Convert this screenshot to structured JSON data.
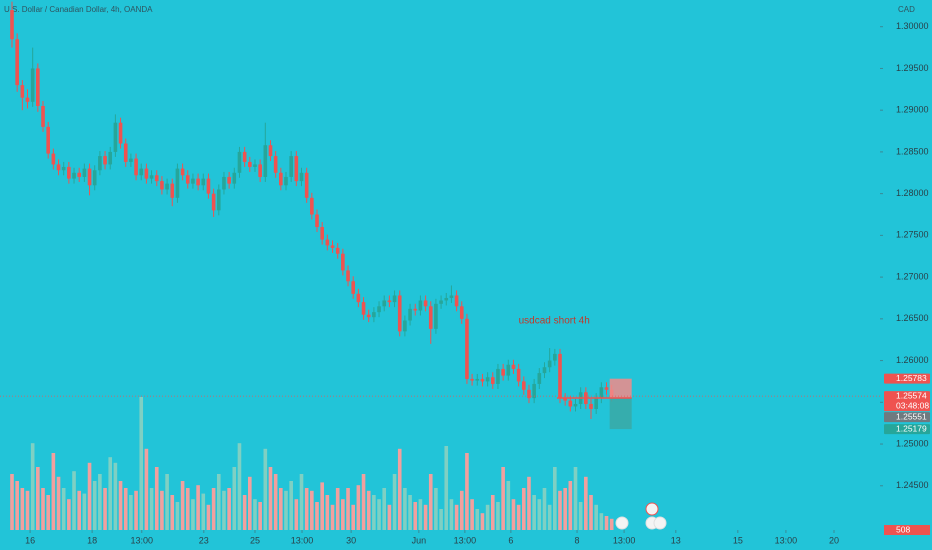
{
  "chart_data": {
    "type": "candlestick",
    "title": "U.S. Dollar / Canadian Dollar, 4h, OANDA",
    "currency": "CAD",
    "annotation": "usdcad short 4h",
    "colors": {
      "up": "#26a69a",
      "down": "#ef5350",
      "up_volume": "#7fd0c3",
      "down_volume": "#f2a09e"
    },
    "xlim": [
      -2.32,
      167.9
    ],
    "ylim": [
      1.2397,
      1.3032
    ],
    "volume_lim": [
      0,
      100
    ],
    "grid": false,
    "yticks": [
      {
        "value": 1.245,
        "label": "1.24500"
      },
      {
        "value": 1.25,
        "label": "1.25000"
      },
      {
        "value": 1.255,
        "label": "1.25500"
      },
      {
        "value": 1.26,
        "label": "1.26000"
      },
      {
        "value": 1.265,
        "label": "1.26500"
      },
      {
        "value": 1.27,
        "label": "1.27000"
      },
      {
        "value": 1.275,
        "label": "1.27500"
      },
      {
        "value": 1.28,
        "label": "1.28000"
      },
      {
        "value": 1.285,
        "label": "1.28500"
      },
      {
        "value": 1.29,
        "label": "1.29000"
      },
      {
        "value": 1.295,
        "label": "1.29500"
      },
      {
        "value": 1.3,
        "label": "1.30000"
      }
    ],
    "xticks": [
      {
        "value": 3.5,
        "label": "16"
      },
      {
        "value": 15.5,
        "label": "18"
      },
      {
        "value": 25.1,
        "label": "13:00"
      },
      {
        "value": 37.1,
        "label": "23"
      },
      {
        "value": 47,
        "label": "25"
      },
      {
        "value": 56.1,
        "label": "13:00"
      },
      {
        "value": 65.6,
        "label": "30"
      },
      {
        "value": 78.7,
        "label": "Jun"
      },
      {
        "value": 87.6,
        "label": "13:00"
      },
      {
        "value": 96.5,
        "label": "6"
      },
      {
        "value": 109.3,
        "label": "8"
      },
      {
        "value": 118.4,
        "label": "13:00"
      },
      {
        "value": 128.4,
        "label": "13"
      },
      {
        "value": 140.4,
        "label": "15"
      },
      {
        "value": 149.7,
        "label": "13:00"
      },
      {
        "value": 159,
        "label": "20"
      }
    ],
    "open": [
      1.302,
      1.2985,
      1.293,
      1.2915,
      1.291,
      1.295,
      1.2905,
      1.288,
      1.2848,
      1.2835,
      1.2828,
      1.2832,
      1.2818,
      1.2825,
      1.282,
      1.283,
      1.281,
      1.2828,
      1.2845,
      1.2835,
      1.285,
      1.2885,
      1.286,
      1.2838,
      1.2842,
      1.2822,
      1.283,
      1.2818,
      1.2822,
      1.2815,
      1.2805,
      1.2812,
      1.2795,
      1.283,
      1.2822,
      1.2812,
      1.2818,
      1.281,
      1.2818,
      1.28,
      1.278,
      1.2805,
      1.282,
      1.2812,
      1.2825,
      1.285,
      1.2838,
      1.2832,
      1.2835,
      1.282,
      1.2858,
      1.2845,
      1.2825,
      1.281,
      1.282,
      1.2845,
      1.2815,
      1.2825,
      1.2795,
      1.2775,
      1.276,
      1.2745,
      1.2738,
      1.2735,
      1.2728,
      1.2708,
      1.2695,
      1.268,
      1.267,
      1.2655,
      1.2652,
      1.2658,
      1.2665,
      1.2672,
      1.267,
      1.2678,
      1.2635,
      1.2648,
      1.2662,
      1.266,
      1.2672,
      1.2665,
      1.2638,
      1.2668,
      1.2672,
      1.2675,
      1.2678,
      1.2665,
      1.265,
      1.2578,
      1.2576,
      1.2578,
      1.2575,
      1.258,
      1.2572,
      1.259,
      1.2582,
      1.2595,
      1.259,
      1.2575,
      1.2565,
      1.2555,
      1.2572,
      1.2585,
      1.2592,
      1.26,
      1.2608,
      1.2555,
      1.2552,
      1.2545,
      1.2548,
      1.2562,
      1.2548,
      1.2542,
      1.2555,
      1.2568,
      1.2565
    ],
    "high": [
      1.303,
      1.2992,
      1.2936,
      1.2925,
      1.2975,
      1.2956,
      1.2911,
      1.2886,
      1.2854,
      1.2841,
      1.2838,
      1.2838,
      1.2831,
      1.2831,
      1.2836,
      1.2836,
      1.2834,
      1.2851,
      1.2851,
      1.2856,
      1.2895,
      1.2891,
      1.2866,
      1.2848,
      1.2848,
      1.2836,
      1.2836,
      1.2828,
      1.2828,
      1.2821,
      1.2818,
      1.2818,
      1.2836,
      1.2836,
      1.2828,
      1.2824,
      1.2824,
      1.2824,
      1.2824,
      1.2806,
      1.2811,
      1.2826,
      1.2826,
      1.2831,
      1.2856,
      1.2856,
      1.2844,
      1.2841,
      1.2841,
      1.2885,
      1.2864,
      1.2851,
      1.2831,
      1.2826,
      1.2851,
      1.2851,
      1.2831,
      1.2831,
      1.2801,
      1.2781,
      1.2766,
      1.2751,
      1.2744,
      1.2741,
      1.2734,
      1.2714,
      1.2701,
      1.2686,
      1.2676,
      1.2661,
      1.2664,
      1.2671,
      1.2678,
      1.2678,
      1.2684,
      1.2684,
      1.2654,
      1.2668,
      1.2668,
      1.2678,
      1.2678,
      1.2671,
      1.2674,
      1.2678,
      1.2681,
      1.269,
      1.2684,
      1.2671,
      1.2656,
      1.2584,
      1.2584,
      1.2584,
      1.2586,
      1.2586,
      1.2596,
      1.2596,
      1.2601,
      1.2601,
      1.2596,
      1.2581,
      1.2571,
      1.2578,
      1.2591,
      1.2598,
      1.2615,
      1.2614,
      1.2614,
      1.2561,
      1.2558,
      1.2554,
      1.2568,
      1.2568,
      1.2554,
      1.2561,
      1.2574,
      1.2574,
      1.2571
    ],
    "low": [
      1.2975,
      1.2922,
      1.29,
      1.2902,
      1.2904,
      1.2898,
      1.2874,
      1.2842,
      1.2829,
      1.2822,
      1.2822,
      1.2812,
      1.2812,
      1.2814,
      1.2814,
      1.2798,
      1.2804,
      1.2822,
      1.2829,
      1.2829,
      1.2844,
      1.2854,
      1.2832,
      1.2832,
      1.2816,
      1.2816,
      1.2812,
      1.2812,
      1.2809,
      1.2799,
      1.2799,
      1.2785,
      1.2789,
      1.2816,
      1.2806,
      1.2806,
      1.2804,
      1.2804,
      1.2794,
      1.2772,
      1.2774,
      1.2799,
      1.2806,
      1.2806,
      1.2819,
      1.2832,
      1.2826,
      1.2826,
      1.2814,
      1.2814,
      1.2839,
      1.2819,
      1.2804,
      1.2804,
      1.2814,
      1.2809,
      1.2809,
      1.2789,
      1.2769,
      1.2754,
      1.2739,
      1.2732,
      1.2729,
      1.2722,
      1.2702,
      1.2689,
      1.2674,
      1.2664,
      1.2649,
      1.2646,
      1.2646,
      1.2652,
      1.2659,
      1.2664,
      1.2664,
      1.2629,
      1.2629,
      1.2642,
      1.2654,
      1.2654,
      1.2659,
      1.262,
      1.2632,
      1.2662,
      1.2666,
      1.2669,
      1.2659,
      1.2644,
      1.2572,
      1.257,
      1.257,
      1.2569,
      1.2569,
      1.2566,
      1.2566,
      1.2576,
      1.2576,
      1.2584,
      1.2569,
      1.2559,
      1.2549,
      1.2549,
      1.2566,
      1.2579,
      1.2586,
      1.2594,
      1.2549,
      1.2546,
      1.2539,
      1.2539,
      1.2542,
      1.2542,
      1.253,
      1.2536,
      1.2549,
      1.2559,
      1.2551
    ],
    "close": [
      1.2985,
      1.293,
      1.2915,
      1.291,
      1.295,
      1.2905,
      1.288,
      1.2848,
      1.2835,
      1.2828,
      1.2832,
      1.2818,
      1.2825,
      1.282,
      1.283,
      1.281,
      1.2828,
      1.2845,
      1.2835,
      1.285,
      1.2885,
      1.286,
      1.2838,
      1.2842,
      1.2822,
      1.283,
      1.2818,
      1.2822,
      1.2815,
      1.2805,
      1.2812,
      1.2795,
      1.283,
      1.2822,
      1.2812,
      1.2818,
      1.281,
      1.2818,
      1.28,
      1.278,
      1.2805,
      1.282,
      1.2812,
      1.2825,
      1.285,
      1.2838,
      1.2832,
      1.2835,
      1.282,
      1.2858,
      1.2845,
      1.2825,
      1.281,
      1.282,
      1.2845,
      1.2815,
      1.2825,
      1.2795,
      1.2775,
      1.276,
      1.2745,
      1.2738,
      1.2735,
      1.2728,
      1.2708,
      1.2695,
      1.268,
      1.267,
      1.2655,
      1.2652,
      1.2658,
      1.2665,
      1.2672,
      1.267,
      1.2678,
      1.2635,
      1.2648,
      1.2662,
      1.266,
      1.2672,
      1.2665,
      1.2638,
      1.2668,
      1.2672,
      1.2675,
      1.2678,
      1.2665,
      1.265,
      1.2578,
      1.2576,
      1.2578,
      1.2575,
      1.258,
      1.2572,
      1.259,
      1.2582,
      1.2595,
      1.259,
      1.2575,
      1.2565,
      1.2555,
      1.2572,
      1.2585,
      1.2592,
      1.26,
      1.2608,
      1.2555,
      1.2552,
      1.2545,
      1.2548,
      1.2562,
      1.2548,
      1.2542,
      1.2555,
      1.2568,
      1.2565,
      1.2557
    ],
    "volume": [
      40,
      35,
      30,
      28,
      62,
      45,
      30,
      25,
      55,
      38,
      30,
      22,
      42,
      28,
      26,
      48,
      35,
      40,
      30,
      52,
      48,
      35,
      30,
      25,
      28,
      95,
      58,
      30,
      45,
      28,
      40,
      25,
      20,
      35,
      30,
      22,
      32,
      26,
      18,
      30,
      40,
      28,
      30,
      45,
      62,
      25,
      38,
      22,
      20,
      58,
      45,
      40,
      30,
      28,
      35,
      22,
      40,
      30,
      28,
      20,
      34,
      25,
      18,
      30,
      22,
      30,
      18,
      32,
      40,
      28,
      25,
      22,
      30,
      18,
      40,
      58,
      30,
      25,
      20,
      22,
      18,
      40,
      30,
      15,
      60,
      22,
      18,
      28,
      55,
      22,
      15,
      12,
      18,
      25,
      20,
      45,
      35,
      22,
      18,
      30,
      38,
      25,
      22,
      30,
      18,
      45,
      28,
      30,
      35,
      45,
      20,
      38,
      25,
      18,
      12,
      10,
      8
    ],
    "position": {
      "stop": 1.25783,
      "entry": 1.25551,
      "target": 1.25179
    },
    "price_tags": [
      {
        "value": 1.25783,
        "color": "#ef5350"
      },
      {
        "value": 1.25574,
        "color": "#ef5350"
      },
      {
        "value": 1.25551,
        "color": "#6f7a80"
      },
      {
        "value": 1.25179,
        "color": "#26a69a"
      }
    ],
    "countdown": "03:48:08",
    "last_volume_label": 508
  }
}
